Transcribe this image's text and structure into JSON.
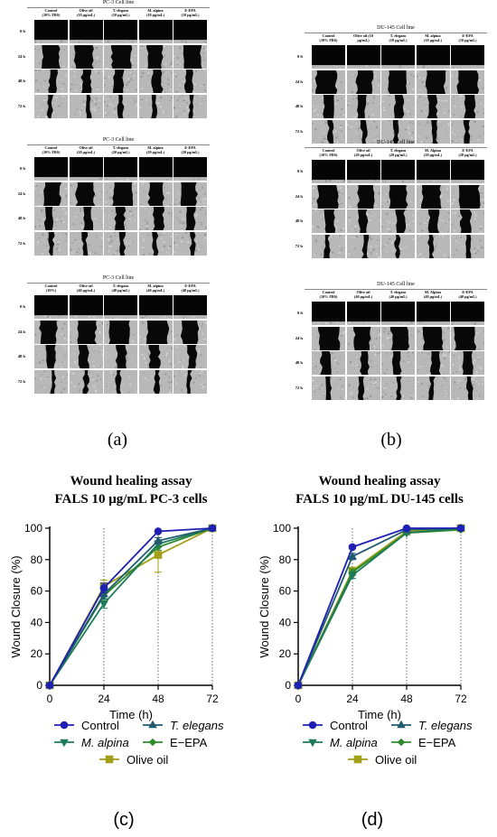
{
  "panels": [
    {
      "label": "(a)",
      "blocks": [
        {
          "title": "PC-3 Cell line",
          "headers": [
            "Control\n(10% FBS)",
            "Olive oil\n(10 μg/mL)",
            "T. elegans\n(10 μg/mL)",
            "M. alpina\n(10 μg/mL)",
            "E-EPA\n(10 μg/mL)"
          ],
          "times": [
            "0 h",
            "24 h",
            "48 h",
            "72 h"
          ]
        },
        {
          "title": "PC-3 Cell line",
          "headers": [
            "Control\n(10% FBS)",
            "Olive oil\n(20 μg/mL)",
            "T. elegans\n(20 μg/mL)",
            "M. alpina\n(20 μg/mL)",
            "E-EPA\n(20 μg/mL)"
          ],
          "times": [
            "0 h",
            "24 h",
            "48 h",
            "72 h"
          ]
        },
        {
          "title": "PC-3 Cell line",
          "headers": [
            "Control\n(10%)",
            "Olive oil\n(40 μg/mL)",
            "T. elegans\n(40 μg/mL)",
            "M. alpina\n(40 μg/mL)",
            "E-EPA\n(40 μg/mL)"
          ],
          "times": [
            "0 h",
            "24 h",
            "48 h",
            "72 h"
          ]
        }
      ]
    },
    {
      "label": "(b)",
      "blocks": [
        {
          "title": "DU-145 Cell line",
          "headers": [
            "Control\n(10% FBS)",
            "Olive oil (10\nμg/mL)",
            "T. elegans\n(10 μg/mL)",
            "M. alpina\n(10 μg/mL)",
            "E-EPA\n(10 μg/mL)"
          ],
          "times": [
            "0 h",
            "24 h",
            "48 h",
            "72 h"
          ]
        },
        {
          "title": "DU-145 Cell line",
          "headers": [
            "Control\n(10% FBS)",
            "Olive oil\n(20 μg/mL)",
            "T. elegans\n(20 μg/mL)",
            "M. Alpina\n(20 μg/mL)",
            "E-EPA\n(20 μg/mL)"
          ],
          "times": [
            "0 h",
            "24 h",
            "48 h",
            "72 h"
          ]
        },
        {
          "title": "DU-145 Cell line",
          "headers": [
            "Control\n(10% FBS)",
            "Olive oil\n(40 μg/mL)",
            "T. elegans\n(40 μg/mL)",
            "M. Alpina\n(40 μg/mL)",
            "E-EPA\n(40 μg/mL)"
          ],
          "times": [
            "0 h",
            "24 h",
            "48 h",
            "72 h"
          ]
        }
      ]
    }
  ],
  "legend_order": [
    "Control",
    "T. elegans",
    "M. alpina",
    "E−EPA",
    "Olive oil"
  ],
  "chart_data": [
    {
      "type": "line",
      "label": "(c)",
      "title": [
        "Wound healing assay",
        "FALS 10 μg/mL PC-3 cells"
      ],
      "xlabel": "Time (h)",
      "ylabel": "Wound Closure (%)",
      "x": [
        0,
        24,
        48,
        72
      ],
      "xlim": [
        0,
        72
      ],
      "ylim": [
        0,
        100
      ],
      "xticks": [
        0,
        24,
        48,
        72
      ],
      "yticks": [
        0,
        20,
        40,
        60,
        80,
        100
      ],
      "grid": "dotted vertical at x ticks",
      "series": [
        {
          "name": "Control",
          "color": "#1f1fb4",
          "marker": "circle",
          "italic": false,
          "values": [
            0,
            62,
            98,
            100
          ],
          "err": [
            0,
            3,
            0,
            0
          ]
        },
        {
          "name": "T. elegans",
          "color": "#1f5a6e",
          "marker": "triangle-up",
          "italic": true,
          "values": [
            0,
            58,
            92,
            100
          ],
          "err": [
            0,
            3,
            2,
            0
          ]
        },
        {
          "name": "M. alpina",
          "color": "#1e7a5a",
          "marker": "triangle-down",
          "italic": true,
          "values": [
            0,
            52,
            90,
            100
          ],
          "err": [
            0,
            3,
            2,
            0
          ]
        },
        {
          "name": "E−EPA",
          "color": "#2e8b2e",
          "marker": "diamond",
          "italic": false,
          "values": [
            0,
            57,
            88,
            100
          ],
          "err": [
            0,
            3,
            2,
            0
          ]
        },
        {
          "name": "Olive oil",
          "color": "#a2a018",
          "marker": "square",
          "italic": false,
          "values": [
            0,
            63,
            83,
            100
          ],
          "err": [
            0,
            4,
            11,
            0
          ]
        }
      ]
    },
    {
      "type": "line",
      "label": "(d)",
      "title": [
        "Wound healing assay",
        "FALS 10 μg/mL DU-145 cells"
      ],
      "xlabel": "Time (h)",
      "ylabel": "Wound Closure (%)",
      "x": [
        0,
        24,
        48,
        72
      ],
      "xlim": [
        0,
        72
      ],
      "ylim": [
        0,
        100
      ],
      "xticks": [
        0,
        24,
        48,
        72
      ],
      "yticks": [
        0,
        20,
        40,
        60,
        80,
        100
      ],
      "grid": "dotted vertical at x ticks",
      "series": [
        {
          "name": "Control",
          "color": "#1f1fb4",
          "marker": "circle",
          "italic": false,
          "values": [
            0,
            88,
            100,
            100
          ],
          "err": [
            0,
            1,
            0,
            0
          ]
        },
        {
          "name": "T. elegans",
          "color": "#1f5a6e",
          "marker": "triangle-up",
          "italic": true,
          "values": [
            0,
            82,
            99,
            100
          ],
          "err": [
            0,
            2,
            1,
            0
          ]
        },
        {
          "name": "M. alpina",
          "color": "#1e7a5a",
          "marker": "triangle-down",
          "italic": true,
          "values": [
            0,
            70,
            97,
            100
          ],
          "err": [
            0,
            2,
            1,
            0
          ]
        },
        {
          "name": "E−EPA",
          "color": "#2e8b2e",
          "marker": "diamond",
          "italic": false,
          "values": [
            0,
            72,
            97,
            99
          ],
          "err": [
            0,
            2,
            1,
            0
          ]
        },
        {
          "name": "Olive oil",
          "color": "#a2a018",
          "marker": "square",
          "italic": false,
          "values": [
            0,
            73,
            98,
            100
          ],
          "err": [
            0,
            2,
            1,
            0
          ]
        }
      ]
    }
  ]
}
